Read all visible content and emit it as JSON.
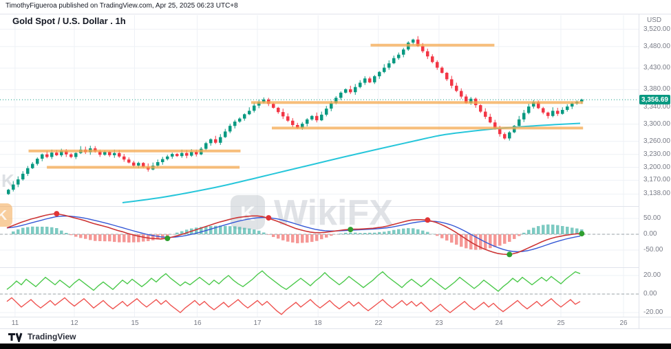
{
  "header": {
    "attribution": "TimothyFigueroa published on TradingView.com, Apr 25, 2025 06:23 UTC+8"
  },
  "chart": {
    "title": "Gold Spot / U.S. Dollar . 1h",
    "last_price_label": "3,356.69"
  },
  "axes": {
    "currency": "USD",
    "price_ticks": [
      {
        "label": "3,520.00",
        "value": 3520
      },
      {
        "label": "3,480.00",
        "value": 3480
      },
      {
        "label": "3,430.00",
        "value": 3430
      },
      {
        "label": "3,380.00",
        "value": 3380
      },
      {
        "label": "3,340.00",
        "value": 3340
      },
      {
        "label": "3,300.00",
        "value": 3300
      },
      {
        "label": "3,260.00",
        "value": 3260
      },
      {
        "label": "3,230.00",
        "value": 3230
      },
      {
        "label": "3,200.00",
        "value": 3200
      },
      {
        "label": "3,170.00",
        "value": 3170
      },
      {
        "label": "3,138.00",
        "value": 3138
      }
    ],
    "macd_ticks": [
      {
        "label": "50.00",
        "value": 50
      },
      {
        "label": "0.00",
        "value": 0
      },
      {
        "label": "-50.00",
        "value": -50
      }
    ],
    "osc_ticks": [
      {
        "label": "20.00",
        "value": 20
      },
      {
        "label": "0.00",
        "value": 0
      },
      {
        "label": "-20.00",
        "value": -20
      }
    ],
    "time_ticks": [
      {
        "label": "11",
        "i": 1.7
      },
      {
        "label": "12",
        "i": 14
      },
      {
        "label": "15",
        "i": 26.5
      },
      {
        "label": "16",
        "i": 39.5
      },
      {
        "label": "17",
        "i": 52
      },
      {
        "label": "18",
        "i": 64.6
      },
      {
        "label": "22",
        "i": 77.1
      },
      {
        "label": "23",
        "i": 89.7
      },
      {
        "label": "24",
        "i": 102.1
      },
      {
        "label": "25",
        "i": 115
      },
      {
        "label": "26",
        "i": 128
      }
    ]
  },
  "watermark": {
    "text": "WikiFX",
    "icon_letter": "K"
  },
  "footer": {
    "brand": "TradingView"
  },
  "colors": {
    "up": "#089981",
    "down": "#f23645",
    "ma": "#26c6da",
    "level": "#f5a94f",
    "macd_line": "#cc3333",
    "signal_line": "#3457d5",
    "hist_up": "#26a69a",
    "hist_down": "#ef5350",
    "dot_buy": "#2f9e2f",
    "dot_sell": "#e03535",
    "osc_up": "#4cc94c",
    "osc_down": "#ef5350",
    "price_line": "#089981",
    "badge_bg": "#089981",
    "grid": "#eef1f6",
    "separator": "#e0e3eb",
    "axis_text": "#787b86",
    "watermark": "#ccd0d6",
    "wm_orange": "#f2a64e"
  },
  "chart_data": {
    "type": "candlestick",
    "symbol": "Gold Spot / U.S. Dollar",
    "interval": "1h",
    "price_range": [
      3110,
      3540
    ],
    "last_price": 3356.69,
    "first_open": 3138,
    "closes": [
      3148,
      3160,
      3172,
      3185,
      3198,
      3208,
      3220,
      3230,
      3224,
      3234,
      3228,
      3238,
      3230,
      3224,
      3233,
      3241,
      3235,
      3244,
      3237,
      3229,
      3236,
      3228,
      3233,
      3225,
      3218,
      3211,
      3204,
      3210,
      3201,
      3195,
      3204,
      3212,
      3219,
      3225,
      3231,
      3226,
      3233,
      3227,
      3236,
      3230,
      3243,
      3256,
      3265,
      3257,
      3270,
      3283,
      3296,
      3306,
      3313,
      3323,
      3331,
      3343,
      3351,
      3357,
      3347,
      3338,
      3328,
      3318,
      3308,
      3298,
      3291,
      3301,
      3311,
      3319,
      3309,
      3322,
      3336,
      3349,
      3361,
      3373,
      3381,
      3374,
      3386,
      3396,
      3406,
      3397,
      3411,
      3421,
      3431,
      3441,
      3453,
      3461,
      3473,
      3489,
      3496,
      3481,
      3469,
      3457,
      3444,
      3431,
      3419,
      3404,
      3389,
      3377,
      3364,
      3349,
      3359,
      3344,
      3329,
      3317,
      3304,
      3291,
      3277,
      3267,
      3281,
      3296,
      3311,
      3326,
      3341,
      3351,
      3337,
      3327,
      3319,
      3331,
      3324,
      3333,
      3341,
      3348,
      3352,
      3357
    ],
    "levels": [
      {
        "price": 3238,
        "i1": 4.5,
        "i2": 48.5
      },
      {
        "price": 3200,
        "i1": 8.3,
        "i2": 48.3
      },
      {
        "price": 3350,
        "i1": 50.7,
        "i2": 119.6
      },
      {
        "price": 3291,
        "i1": 55,
        "i2": 119.6
      },
      {
        "price": 3483,
        "i1": 75.5,
        "i2": 101.2
      }
    ],
    "ma_cyan": [
      [
        24,
        3118
      ],
      [
        32,
        3130
      ],
      [
        40,
        3146
      ],
      [
        46,
        3160
      ],
      [
        52,
        3176
      ],
      [
        58,
        3192
      ],
      [
        64,
        3208
      ],
      [
        70,
        3224
      ],
      [
        77,
        3242
      ],
      [
        83,
        3257
      ],
      [
        90,
        3274
      ],
      [
        96,
        3283
      ],
      [
        102,
        3290
      ],
      [
        108,
        3295
      ],
      [
        114,
        3299
      ],
      [
        119,
        3302
      ]
    ],
    "macd": [
      20,
      26,
      32,
      38,
      43,
      48,
      52,
      56,
      60,
      63,
      65,
      63,
      60,
      56,
      52,
      48,
      44,
      39,
      34,
      30,
      26,
      22,
      17,
      12,
      8,
      3,
      -1,
      -5,
      -8,
      -11,
      -13,
      -14,
      -15,
      -13,
      -10,
      -6,
      -2,
      3,
      8,
      13,
      18,
      23,
      28,
      33,
      38,
      42,
      46,
      50,
      53,
      55,
      57,
      58,
      58,
      56,
      52,
      47,
      42,
      36,
      30,
      24,
      18,
      14,
      10,
      7,
      5,
      5,
      6,
      8,
      10,
      12,
      14,
      15,
      16,
      16,
      17,
      18,
      19,
      21,
      23,
      26,
      30,
      34,
      38,
      42,
      45,
      46,
      46,
      45,
      42,
      38,
      32,
      25,
      17,
      8,
      -2,
      -12,
      -22,
      -31,
      -39,
      -46,
      -52,
      -57,
      -61,
      -63,
      -64,
      -62,
      -58,
      -52,
      -45,
      -38,
      -31,
      -24,
      -18,
      -13,
      -9,
      -6,
      -3,
      -1,
      1,
      2
    ],
    "signals": [
      {
        "i": 10,
        "t": "sell"
      },
      {
        "i": 33,
        "t": "buy"
      },
      {
        "i": 54,
        "t": "sell"
      },
      {
        "i": 71,
        "t": "buy"
      },
      {
        "i": 87,
        "t": "sell"
      },
      {
        "i": 104,
        "t": "buy"
      },
      {
        "i": 119,
        "t": "buy"
      }
    ],
    "osc_green": [
      5,
      9,
      14,
      10,
      16,
      12,
      8,
      13,
      18,
      14,
      10,
      15,
      11,
      7,
      12,
      16,
      12,
      8,
      4,
      9,
      13,
      9,
      5,
      10,
      15,
      11,
      16,
      12,
      8,
      12,
      17,
      13,
      18,
      22,
      17,
      13,
      9,
      13,
      10,
      14,
      18,
      14,
      10,
      15,
      11,
      16,
      20,
      15,
      11,
      8,
      12,
      16,
      21,
      25,
      20,
      16,
      12,
      8,
      5,
      9,
      13,
      17,
      13,
      9,
      14,
      18,
      23,
      18,
      14,
      10,
      14,
      19,
      15,
      11,
      7,
      11,
      15,
      20,
      24,
      19,
      15,
      11,
      7,
      12,
      16,
      12,
      8,
      12,
      17,
      13,
      9,
      5,
      9,
      13,
      18,
      14,
      10,
      6,
      10,
      15,
      11,
      7,
      3,
      8,
      12,
      17,
      13,
      18,
      14,
      10,
      14,
      18,
      14,
      19,
      15,
      11,
      16,
      20,
      24,
      22
    ],
    "osc_red": [
      -8,
      -4,
      -9,
      -14,
      -10,
      -6,
      -11,
      -15,
      -11,
      -7,
      -12,
      -8,
      -4,
      -9,
      -13,
      -9,
      -5,
      -10,
      -15,
      -11,
      -7,
      -12,
      -16,
      -12,
      -8,
      -13,
      -9,
      -5,
      -10,
      -14,
      -10,
      -6,
      -11,
      -7,
      -12,
      -16,
      -20,
      -15,
      -11,
      -7,
      -12,
      -8,
      -13,
      -17,
      -13,
      -9,
      -14,
      -10,
      -6,
      -11,
      -15,
      -11,
      -7,
      -12,
      -8,
      -13,
      -18,
      -22,
      -17,
      -13,
      -9,
      -14,
      -10,
      -6,
      -11,
      -15,
      -11,
      -7,
      -12,
      -16,
      -12,
      -8,
      -13,
      -9,
      -14,
      -18,
      -14,
      -10,
      -6,
      -11,
      -15,
      -11,
      -7,
      -12,
      -8,
      -13,
      -9,
      -14,
      -19,
      -15,
      -11,
      -16,
      -20,
      -16,
      -12,
      -8,
      -13,
      -17,
      -13,
      -9,
      -14,
      -10,
      -15,
      -19,
      -15,
      -11,
      -7,
      -12,
      -16,
      -12,
      -8,
      -13,
      -9,
      -5,
      -10,
      -14,
      -10,
      -6,
      -11,
      -8
    ]
  }
}
